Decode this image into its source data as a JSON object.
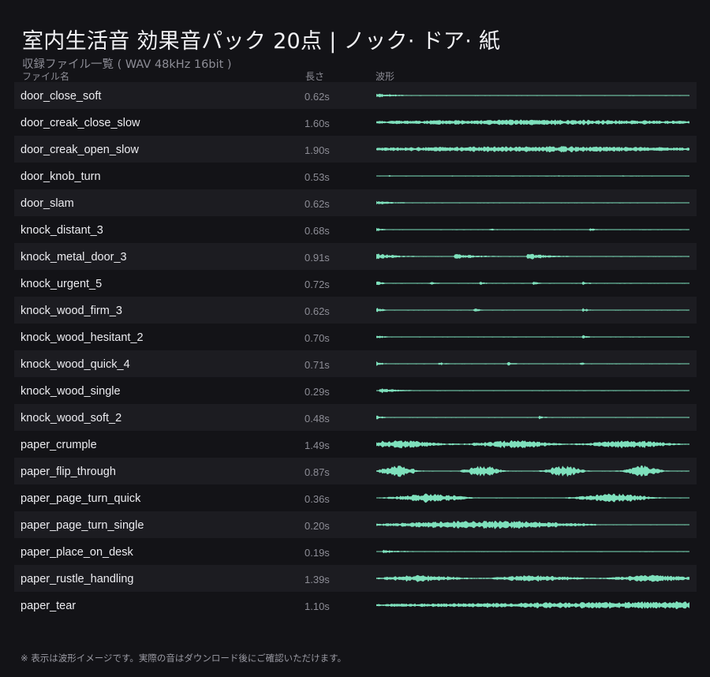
{
  "header": {
    "title": "室内生活音 効果音パック 20点 | ノック· ドア· 紙",
    "subtitle": "収録ファイル一覧 ( WAV 48kHz 16bit )"
  },
  "columns": {
    "name": "ファイル名",
    "length": "長さ",
    "waveform": "波形"
  },
  "files": [
    {
      "name": "door_close_soft",
      "length": "0.62s",
      "waveform": {
        "style": "decay",
        "bursts": [
          0.0
        ],
        "amp": 0.45,
        "density": 0.5
      }
    },
    {
      "name": "door_creak_close_slow",
      "length": "1.60s",
      "waveform": {
        "style": "sustain",
        "amp": 0.3,
        "density": 0.9
      }
    },
    {
      "name": "door_creak_open_slow",
      "length": "1.90s",
      "waveform": {
        "style": "sustain",
        "amp": 0.32,
        "density": 0.9
      }
    },
    {
      "name": "door_knob_turn",
      "length": "0.53s",
      "waveform": {
        "style": "clicks",
        "bursts": [
          0.04,
          0.24,
          0.38,
          0.58,
          0.78
        ],
        "amp": 0.4,
        "density": 0.3
      }
    },
    {
      "name": "door_slam",
      "length": "0.62s",
      "waveform": {
        "style": "decay",
        "bursts": [
          0.0
        ],
        "amp": 0.5,
        "density": 0.4
      }
    },
    {
      "name": "knock_distant_3",
      "length": "0.68s",
      "waveform": {
        "style": "knocks",
        "bursts": [
          0.0,
          0.36,
          0.68
        ],
        "amp": 0.42,
        "density": 0.5
      }
    },
    {
      "name": "knock_metal_door_3",
      "length": "0.91s",
      "waveform": {
        "style": "ring",
        "bursts": [
          0.0,
          0.25,
          0.48
        ],
        "amp": 0.55,
        "density": 0.6
      }
    },
    {
      "name": "knock_urgent_5",
      "length": "0.72s",
      "waveform": {
        "style": "knocks",
        "bursts": [
          0.0,
          0.17,
          0.33,
          0.5,
          0.66
        ],
        "amp": 0.48,
        "density": 0.5
      }
    },
    {
      "name": "knock_wood_firm_3",
      "length": "0.62s",
      "waveform": {
        "style": "knocks",
        "bursts": [
          0.0,
          0.31,
          0.66
        ],
        "amp": 0.55,
        "density": 0.5
      }
    },
    {
      "name": "knock_wood_hesitant_2",
      "length": "0.70s",
      "waveform": {
        "style": "knocks",
        "bursts": [
          0.0,
          0.66
        ],
        "amp": 0.5,
        "density": 0.5
      }
    },
    {
      "name": "knock_wood_quick_4",
      "length": "0.71s",
      "waveform": {
        "style": "knocks",
        "bursts": [
          0.0,
          0.2,
          0.42,
          0.65
        ],
        "amp": 0.5,
        "density": 0.5
      }
    },
    {
      "name": "knock_wood_single",
      "length": "0.29s",
      "waveform": {
        "style": "decay",
        "bursts": [
          0.01
        ],
        "amp": 0.5,
        "density": 0.5
      }
    },
    {
      "name": "knock_wood_soft_2",
      "length": "0.48s",
      "waveform": {
        "style": "knocks",
        "bursts": [
          0.0,
          0.52
        ],
        "amp": 0.45,
        "density": 0.5
      }
    },
    {
      "name": "paper_crumple",
      "length": "1.49s",
      "waveform": {
        "style": "noise",
        "amp": 0.42,
        "density": 0.95
      }
    },
    {
      "name": "paper_flip_through",
      "length": "0.87s",
      "waveform": {
        "style": "blobs",
        "bursts": [
          0.0,
          0.27,
          0.53,
          0.78
        ],
        "amp": 0.7,
        "density": 0.8
      }
    },
    {
      "name": "paper_page_turn_quick",
      "length": "0.36s",
      "waveform": {
        "style": "blobs2",
        "bursts": [
          0.02,
          0.61
        ],
        "amp": 0.55,
        "density": 0.8
      }
    },
    {
      "name": "paper_page_turn_single",
      "length": "0.20s",
      "waveform": {
        "style": "swell",
        "amp": 0.5,
        "density": 0.85
      }
    },
    {
      "name": "paper_place_on_desk",
      "length": "0.19s",
      "waveform": {
        "style": "decay",
        "bursts": [
          0.02
        ],
        "amp": 0.45,
        "density": 0.4
      }
    },
    {
      "name": "paper_rustle_handling",
      "length": "1.39s",
      "waveform": {
        "style": "noise",
        "amp": 0.35,
        "density": 0.95
      }
    },
    {
      "name": "paper_tear",
      "length": "1.10s",
      "waveform": {
        "style": "noise-rise",
        "amp": 0.45,
        "density": 0.9
      }
    }
  ],
  "footnote": "※ 表示は波形イメージです。実際の音はダウンロード後にご確認いただけます。",
  "colors": {
    "background": "#131317",
    "row_alt": "#1c1c21",
    "waveform": "#7ee0bc",
    "text": "#ececf0",
    "muted": "#8d8d96"
  }
}
